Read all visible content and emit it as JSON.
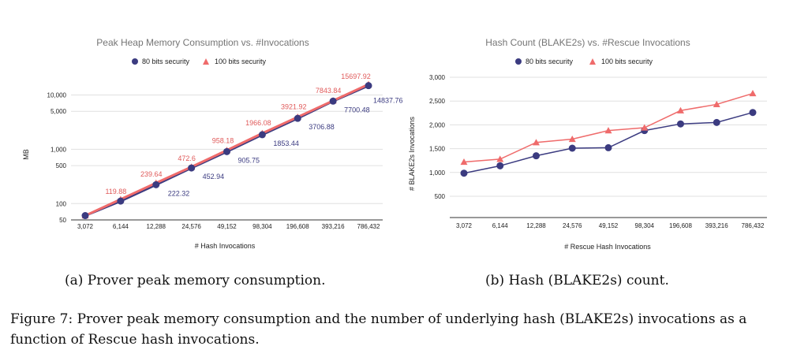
{
  "colors": {
    "series1": "#3b3b80",
    "series2": "#ef6b6b",
    "grid": "#e0e0e0",
    "title": "#757575"
  },
  "captions": {
    "a": "(a) Prover peak memory consumption.",
    "b": "(b) Hash (BLAKE2s) count.",
    "figure": "Figure 7: Prover peak memory consumption and the number of underlying hash (BLAKE2s) invocations as a function of Rescue hash invocations."
  },
  "chart_data": [
    {
      "type": "line",
      "title": "Peak Heap Memory Consumption vs. #Invocations",
      "xlabel": "# Hash Invocations",
      "ylabel": "MB",
      "yscale": "log",
      "ylim": [
        50,
        15697.92
      ],
      "yticks": [
        50,
        100,
        500,
        1000,
        5000,
        10000
      ],
      "legend_position": "top",
      "grid": true,
      "categories": [
        "3,072",
        "6,144",
        "12,288",
        "24,576",
        "49,152",
        "98,304",
        "196,608",
        "393,216",
        "786,432"
      ],
      "series": [
        {
          "name": "80 bits security",
          "marker": "circle",
          "values": [
            60,
            111.16,
            222.32,
            452.94,
            905.75,
            1853.44,
            3706.88,
            7700.48,
            14837.76
          ],
          "labels": [
            "",
            "",
            "222.32",
            "452.94",
            "905.75",
            "1853.44",
            "3706.88",
            "7700.48",
            "14837.76"
          ]
        },
        {
          "name": "100 bits security",
          "marker": "triangle",
          "values": [
            59.94,
            119.88,
            239.64,
            472.6,
            958.18,
            1966.08,
            3921.92,
            7843.84,
            15697.92
          ],
          "labels": [
            "",
            "119.88",
            "239.64",
            "472.6",
            "958.18",
            "1966.08",
            "3921.92",
            "7843.84",
            "15697.92"
          ]
        }
      ]
    },
    {
      "type": "line",
      "title": "Hash Count (BLAKE2s) vs. #Rescue Invocations",
      "xlabel": "# Rescue Hash Invocations",
      "ylabel": "# BLAKE2s Invocations",
      "yscale": "linear",
      "ylim": [
        500,
        3000
      ],
      "yticks": [
        500,
        1000,
        1500,
        2000,
        2500,
        3000
      ],
      "legend_position": "top",
      "grid": true,
      "categories": [
        "3,072",
        "6,144",
        "12,288",
        "24,576",
        "49,152",
        "98,304",
        "196,608",
        "393,216",
        "786,432"
      ],
      "series": [
        {
          "name": "80 bits security",
          "marker": "circle",
          "values": [
            985,
            1140,
            1350,
            1510,
            1520,
            1880,
            2020,
            2050,
            2260
          ]
        },
        {
          "name": "100 bits security",
          "marker": "triangle",
          "values": [
            1220,
            1280,
            1630,
            1700,
            1880,
            1940,
            2300,
            2430,
            2660
          ]
        }
      ]
    }
  ]
}
